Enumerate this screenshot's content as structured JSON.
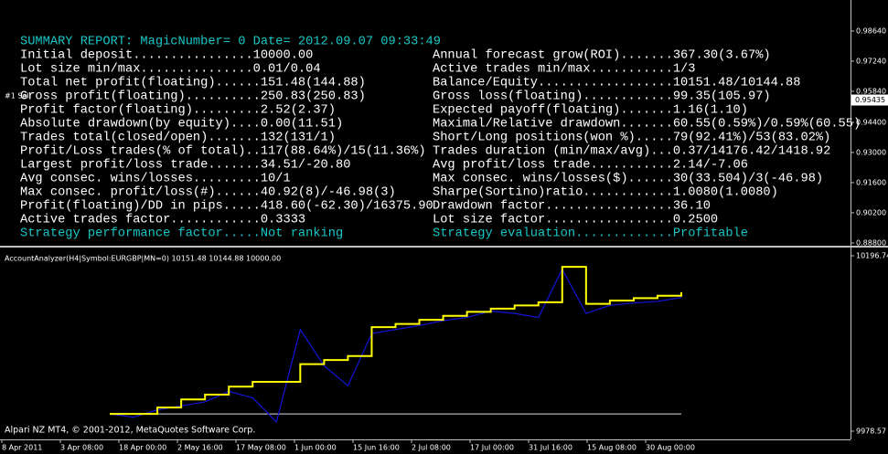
{
  "report": {
    "header": "SUMMARY REPORT: MagicNumber= 0 Date= 2012.09.07 09:33:49",
    "rows": [
      [
        "Initial deposit................10000.00",
        "Annual forecast grow(ROI).......367.30(3.67%)"
      ],
      [
        "Lot size min/max...............0.01/0.04",
        "Active trades min/max...........1/3"
      ],
      [
        "Total net profit(floating)......151.48(144.88)",
        "Balance/Equity..................10151.48/10144.88"
      ],
      [
        "Gross profit(floating)..........250.83(250.83)",
        "Gross loss(floating)............99.35(105.97)"
      ],
      [
        "Profit factor(floating).........2.52(2.37)",
        "Expected payoff(floating).......1.16(1.10)"
      ],
      [
        "Absolute drawdown(by equity)....0.00(11.51)",
        "Maximal/Relative drawdown.......60.55(0.59%)/0.59%(60.55)"
      ],
      [
        "Trades total(closed/open).......132(131/1)",
        "Short/Long positions(won %).....79(92.41%)/53(83.02%)"
      ],
      [
        "Profit/Loss trades(% of total)..117(88.64%)/15(11.36%)",
        "Trades duration (min/max/avg)...0.37/14176.42/1418.92"
      ],
      [
        "Largest profit/loss trade.......34.51/-20.80",
        "Avg profit/loss trade...........2.14/-7.06"
      ],
      [
        "Avg consec. wins/losses.........10/1",
        "Max consec. wins/losses($)......30(33.504)/3(-46.98)"
      ],
      [
        "Max consec. profit/loss(#)......40.92(8)/-46.98(3)",
        "Sharpe(Sortino)ratio............1.0080(1.0080)"
      ],
      [
        "Profit(floating)/DD in pips.....418.60(-62.30)/16375.90",
        "Drawdown factor.................36.10"
      ],
      [
        "Active trades factor............0.3333",
        "Lot size factor.................0.2500"
      ],
      [
        "Strategy performance factor.....Not ranking",
        "Strategy evaluation.............Profitable"
      ]
    ]
  },
  "order_label": "#1 Sell",
  "main_axis": {
    "ylim": [
      0.8867,
      1.0008
    ],
    "yticks": [
      {
        "value": 0.9864,
        "label": "0.98640"
      },
      {
        "value": 0.9724,
        "label": "0.97240"
      },
      {
        "value": 0.9584,
        "label": "0.95840"
      },
      {
        "value": 0.944,
        "label": "0.94400"
      },
      {
        "value": 0.93,
        "label": "0.93000"
      },
      {
        "value": 0.916,
        "label": "0.91600"
      },
      {
        "value": 0.902,
        "label": "0.90200"
      },
      {
        "value": 0.888,
        "label": "0.88800"
      }
    ],
    "current_price": {
      "value": 0.95435,
      "label": "0.95435"
    }
  },
  "chart_data": {
    "type": "line",
    "title": "AccountAnalyzer(H4|Symbol:EURGBP|MN=0) 10151.48 10144.88 10000.00",
    "ylim": [
      9978.57,
      10196.74
    ],
    "yticks": [
      10196.74,
      9978.57
    ],
    "baseline": 10000,
    "series": [
      {
        "name": "Equity",
        "color": "#1414d8",
        "values": [
          10000,
          9996,
          10005,
          10010,
          10015,
          10028,
          10020,
          9990,
          10105,
          10060,
          10035,
          10100,
          10105,
          10110,
          10116,
          10120,
          10128,
          10125,
          10120,
          10180,
          10125,
          10135,
          10138,
          10140,
          10144.88
        ]
      },
      {
        "name": "Balance",
        "color": "#ffff00",
        "values": [
          10000,
          10000,
          10008,
          10018,
          10024,
          10034,
          10040,
          10040,
          10062,
          10067,
          10072,
          10108,
          10112,
          10117,
          10122,
          10127,
          10131,
          10135,
          10139,
          10183,
          10137,
          10141,
          10144,
          10147,
          10151.48
        ]
      }
    ],
    "time_labels": [
      "8 Apr 2011",
      "3 Apr 08:00",
      "18 Apr 00:00",
      "2 May 16:00",
      "17 May 08:00",
      "1 Jun 00:00",
      "15 Jun 16:00",
      "2 Jul 08:00",
      "17 Jul 00:00",
      "31 Jul 16:00",
      "15 Aug 08:00",
      "30 Aug 00:00"
    ]
  },
  "footer": "Alpari NZ MT4, © 2001-2012, MetaQuotes Software Corp."
}
